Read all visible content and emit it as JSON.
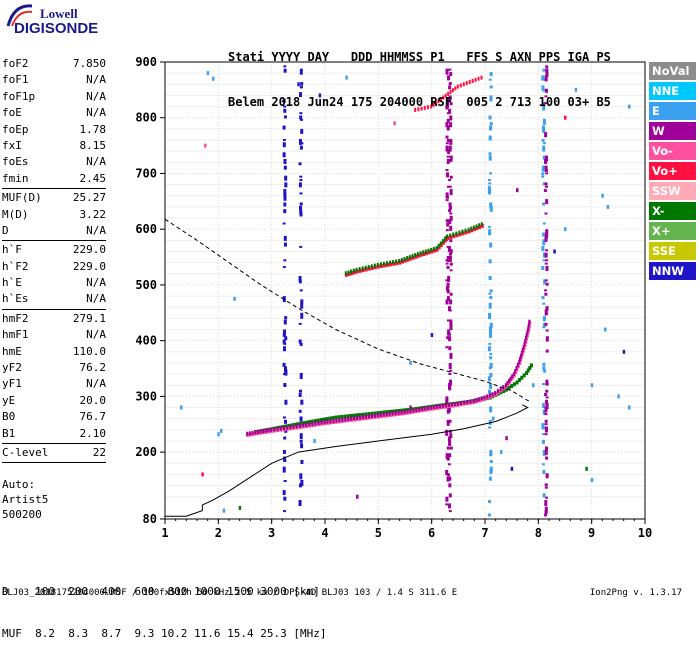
{
  "logo": {
    "line1": "Lowell",
    "line2": "DIGISONDE"
  },
  "header": {
    "line1": "Stati YYYY DAY   DDD HHMMSS P1   FFS S AXN PPS IGA PS",
    "line2": "Belem 2018 Jun24 175 204000 RSF  005 2 713 100 03+ B5"
  },
  "params": [
    [
      {
        "name": "foF2",
        "value": "7.850"
      },
      {
        "name": "foF1",
        "value": "N/A"
      },
      {
        "name": "foF1p",
        "value": "N/A"
      },
      {
        "name": "foE",
        "value": "N/A"
      },
      {
        "name": "foEp",
        "value": "1.78"
      },
      {
        "name": "fxI",
        "value": "8.15"
      },
      {
        "name": "foEs",
        "value": "N/A"
      },
      {
        "name": "fmin",
        "value": "2.45"
      }
    ],
    [
      {
        "name": "MUF(D)",
        "value": "25.27"
      },
      {
        "name": "M(D)",
        "value": "3.22"
      },
      {
        "name": "D",
        "value": "N/A"
      }
    ],
    [
      {
        "name": "h`F",
        "value": "229.0"
      },
      {
        "name": "h`F2",
        "value": "229.0"
      },
      {
        "name": "h`E",
        "value": "N/A"
      },
      {
        "name": "h`Es",
        "value": "N/A"
      }
    ],
    [
      {
        "name": "hmF2",
        "value": "279.1"
      },
      {
        "name": "hmF1",
        "value": "N/A"
      },
      {
        "name": "hmE",
        "value": "110.0"
      },
      {
        "name": "yF2",
        "value": "76.2"
      },
      {
        "name": "yF1",
        "value": "N/A"
      },
      {
        "name": "yE",
        "value": "20.0"
      },
      {
        "name": "B0",
        "value": "76.7"
      },
      {
        "name": "B1",
        "value": "2.10"
      }
    ],
    [
      {
        "name": "C-level",
        "value": "22"
      }
    ]
  ],
  "footer": {
    "line1": "Auto:",
    "line2": "Artist5",
    "line3": "500200"
  },
  "dmuf": {
    "line1": "D    100  200  400  600  800 1000 1500 3000 [km]",
    "line2": "MUF  8.2  8.3  8.7  9.3 10.2 11.6 15.4 25.3 [MHz]"
  },
  "bottom": {
    "info": "BLJ03_2018175204000.RSF / 180fx512h 50 kHz 2.5 km / DPS-4D BLJ03 103 / 1.4 S 311.6 E",
    "version": "Ion2Png v. 1.3.17"
  },
  "legend": [
    {
      "label": "NoVal",
      "color": "#8c8c8c"
    },
    {
      "label": "NNE",
      "color": "#00c8ff"
    },
    {
      "label": "E",
      "color": "#3ca0f0"
    },
    {
      "label": "W",
      "color": "#a0009a"
    },
    {
      "label": "Vo-",
      "color": "#ff50a0"
    },
    {
      "label": "Vo+",
      "color": "#ff1040"
    },
    {
      "label": "SSW",
      "color": "#ffaab4"
    },
    {
      "label": "X-",
      "color": "#007800"
    },
    {
      "label": "X+",
      "color": "#64b450"
    },
    {
      "label": "SSE",
      "color": "#c8c800"
    },
    {
      "label": "NNW",
      "color": "#1e14c8"
    }
  ],
  "chart_data": {
    "type": "scatter",
    "xlim": [
      1,
      10
    ],
    "ylim": [
      80,
      900
    ],
    "x_ticks": [
      "1",
      "2",
      "3",
      "4",
      "5",
      "6",
      "7",
      "8",
      "9",
      "10"
    ],
    "y_ticks": [
      "80",
      "200",
      "300",
      "400",
      "500",
      "600",
      "700",
      "800",
      "900"
    ],
    "grid": true,
    "trace_o": [
      [
        2.55,
        231
      ],
      [
        2.8,
        235
      ],
      [
        3.0,
        238
      ],
      [
        3.3,
        242
      ],
      [
        3.6,
        246
      ],
      [
        4.0,
        252
      ],
      [
        4.5,
        258
      ],
      [
        5.0,
        264
      ],
      [
        5.5,
        270
      ],
      [
        6.0,
        278
      ],
      [
        6.5,
        285
      ],
      [
        6.8,
        290
      ],
      [
        7.0,
        296
      ],
      [
        7.2,
        304
      ],
      [
        7.4,
        318
      ],
      [
        7.55,
        338
      ],
      [
        7.65,
        360
      ],
      [
        7.75,
        392
      ],
      [
        7.82,
        420
      ],
      [
        7.85,
        438
      ]
    ],
    "trace_x": [
      [
        2.7,
        236
      ],
      [
        3.1,
        243
      ],
      [
        3.6,
        252
      ],
      [
        4.2,
        262
      ],
      [
        5.0,
        270
      ],
      [
        5.6,
        276
      ],
      [
        6.2,
        284
      ],
      [
        6.7,
        290
      ],
      [
        7.1,
        298
      ],
      [
        7.4,
        312
      ],
      [
        7.6,
        325
      ],
      [
        7.78,
        342
      ],
      [
        7.9,
        360
      ]
    ],
    "trace_upper": [
      [
        4.4,
        518
      ],
      [
        4.6,
        524
      ],
      [
        5.0,
        533
      ],
      [
        5.4,
        540
      ],
      [
        5.8,
        554
      ],
      [
        6.1,
        563
      ],
      [
        6.3,
        584
      ],
      [
        6.7,
        596
      ],
      [
        7.0,
        608
      ]
    ],
    "trace_top": [
      [
        5.7,
        814
      ],
      [
        6.0,
        820
      ],
      [
        6.5,
        856
      ],
      [
        7.0,
        874
      ]
    ],
    "profile_solid": [
      [
        1.0,
        85
      ],
      [
        1.4,
        85
      ],
      [
        1.7,
        95
      ],
      [
        1.7,
        105
      ],
      [
        1.9,
        114
      ],
      [
        2.2,
        130
      ],
      [
        2.6,
        155
      ],
      [
        3.0,
        180
      ],
      [
        3.5,
        200
      ],
      [
        4.2,
        210
      ],
      [
        5.0,
        220
      ],
      [
        6.0,
        232
      ],
      [
        6.6,
        242
      ],
      [
        7.2,
        255
      ],
      [
        7.6,
        270
      ],
      [
        7.8,
        280
      ],
      [
        7.7,
        285
      ]
    ],
    "profile_dashed": [
      [
        1.0,
        618
      ],
      [
        1.6,
        580
      ],
      [
        2.2,
        540
      ],
      [
        2.8,
        500
      ],
      [
        3.5,
        458
      ],
      [
        4.2,
        420
      ],
      [
        5.0,
        385
      ],
      [
        5.8,
        358
      ],
      [
        6.5,
        340
      ],
      [
        7.0,
        327
      ],
      [
        7.5,
        310
      ],
      [
        7.85,
        290
      ]
    ],
    "vertical_bands": [
      [
        3.25,
        "#1e14c8"
      ],
      [
        3.55,
        "#1e14c8"
      ],
      [
        6.3,
        "#a0009a"
      ],
      [
        6.35,
        "#a0009a"
      ],
      [
        7.1,
        "#3ca0f0"
      ],
      [
        8.1,
        "#3ca0f0"
      ],
      [
        8.15,
        "#a0009a"
      ]
    ],
    "scatter_noise": [
      [
        1.3,
        280,
        "#3ca0f0"
      ],
      [
        1.9,
        870,
        "#3ca0f0"
      ],
      [
        2.0,
        232,
        "#3ca0f0"
      ],
      [
        2.05,
        238,
        "#3ca0f0"
      ],
      [
        2.4,
        100,
        "#007800"
      ],
      [
        2.1,
        95,
        "#3ca0f0"
      ],
      [
        3.5,
        860,
        "#1e14c8"
      ],
      [
        3.9,
        840,
        "#1e14c8"
      ],
      [
        4.4,
        872,
        "#3ca0f0"
      ],
      [
        5.3,
        790,
        "#ff50a0"
      ],
      [
        5.6,
        360,
        "#3ca0f0"
      ],
      [
        5.6,
        280,
        "#a0009a"
      ],
      [
        6.0,
        410,
        "#1e14c8"
      ],
      [
        7.15,
        260,
        "#3ca0f0"
      ],
      [
        7.3,
        200,
        "#3ca0f0"
      ],
      [
        7.4,
        225,
        "#a0009a"
      ],
      [
        7.5,
        170,
        "#1e14c8"
      ],
      [
        7.6,
        670,
        "#a0009a"
      ],
      [
        7.9,
        320,
        "#3ca0f0"
      ],
      [
        8.5,
        800,
        "#ff1040"
      ],
      [
        8.7,
        850,
        "#3ca0f0"
      ],
      [
        8.9,
        170,
        "#007800"
      ],
      [
        9.0,
        320,
        "#3ca0f0"
      ],
      [
        9.0,
        150,
        "#3ca0f0"
      ],
      [
        9.2,
        660,
        "#3ca0f0"
      ],
      [
        9.25,
        420,
        "#3ca0f0"
      ],
      [
        9.3,
        640,
        "#3ca0f0"
      ],
      [
        9.5,
        300,
        "#3ca0f0"
      ],
      [
        9.6,
        380,
        "#1e14c8"
      ],
      [
        9.7,
        280,
        "#3ca0f0"
      ],
      [
        9.7,
        820,
        "#3ca0f0"
      ],
      [
        1.7,
        160,
        "#ff1040"
      ],
      [
        1.8,
        880,
        "#3ca0f0"
      ],
      [
        8.3,
        560,
        "#1e14c8"
      ],
      [
        8.5,
        600,
        "#3ca0f0"
      ],
      [
        3.8,
        220,
        "#3ca0f0"
      ],
      [
        4.6,
        120,
        "#a0009a"
      ],
      [
        2.3,
        475,
        "#3ca0f0"
      ],
      [
        1.75,
        750,
        "#ff50a0"
      ],
      [
        2.2,
        830,
        "#ffaab4"
      ]
    ]
  }
}
